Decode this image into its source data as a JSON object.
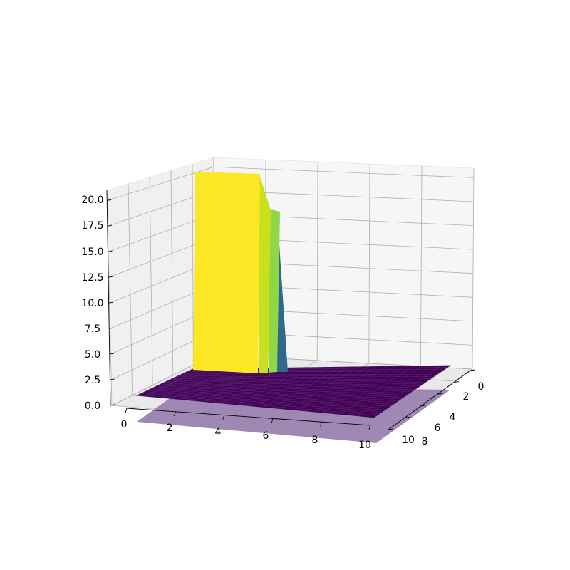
{
  "chart_data": {
    "type": "surface",
    "title": "",
    "xlabel": "",
    "ylabel": "",
    "zlabel": "",
    "xlim": [
      0,
      10
    ],
    "ylim": [
      0,
      10
    ],
    "zlim": [
      0,
      21
    ],
    "x_ticks": [
      "0",
      "2",
      "4",
      "6",
      "8",
      "10"
    ],
    "y_ticks": [
      "0",
      "2",
      "4",
      "6",
      "8",
      "10"
    ],
    "z_ticks": [
      "0.0",
      "2.5",
      "5.0",
      "7.5",
      "10.0",
      "12.5",
      "15.0",
      "17.5",
      "20.0"
    ],
    "colormap": "viridis",
    "grid": true,
    "surface": {
      "base_value": 0,
      "peak_region": {
        "x": [
          0,
          3
        ],
        "y": [
          0,
          2
        ]
      },
      "peak_value": 20.5,
      "step_values": [
        20.5,
        17.5,
        16.5,
        5.0,
        0
      ]
    },
    "floor_projection": {
      "value": 0,
      "color": "#a08ab5"
    }
  }
}
